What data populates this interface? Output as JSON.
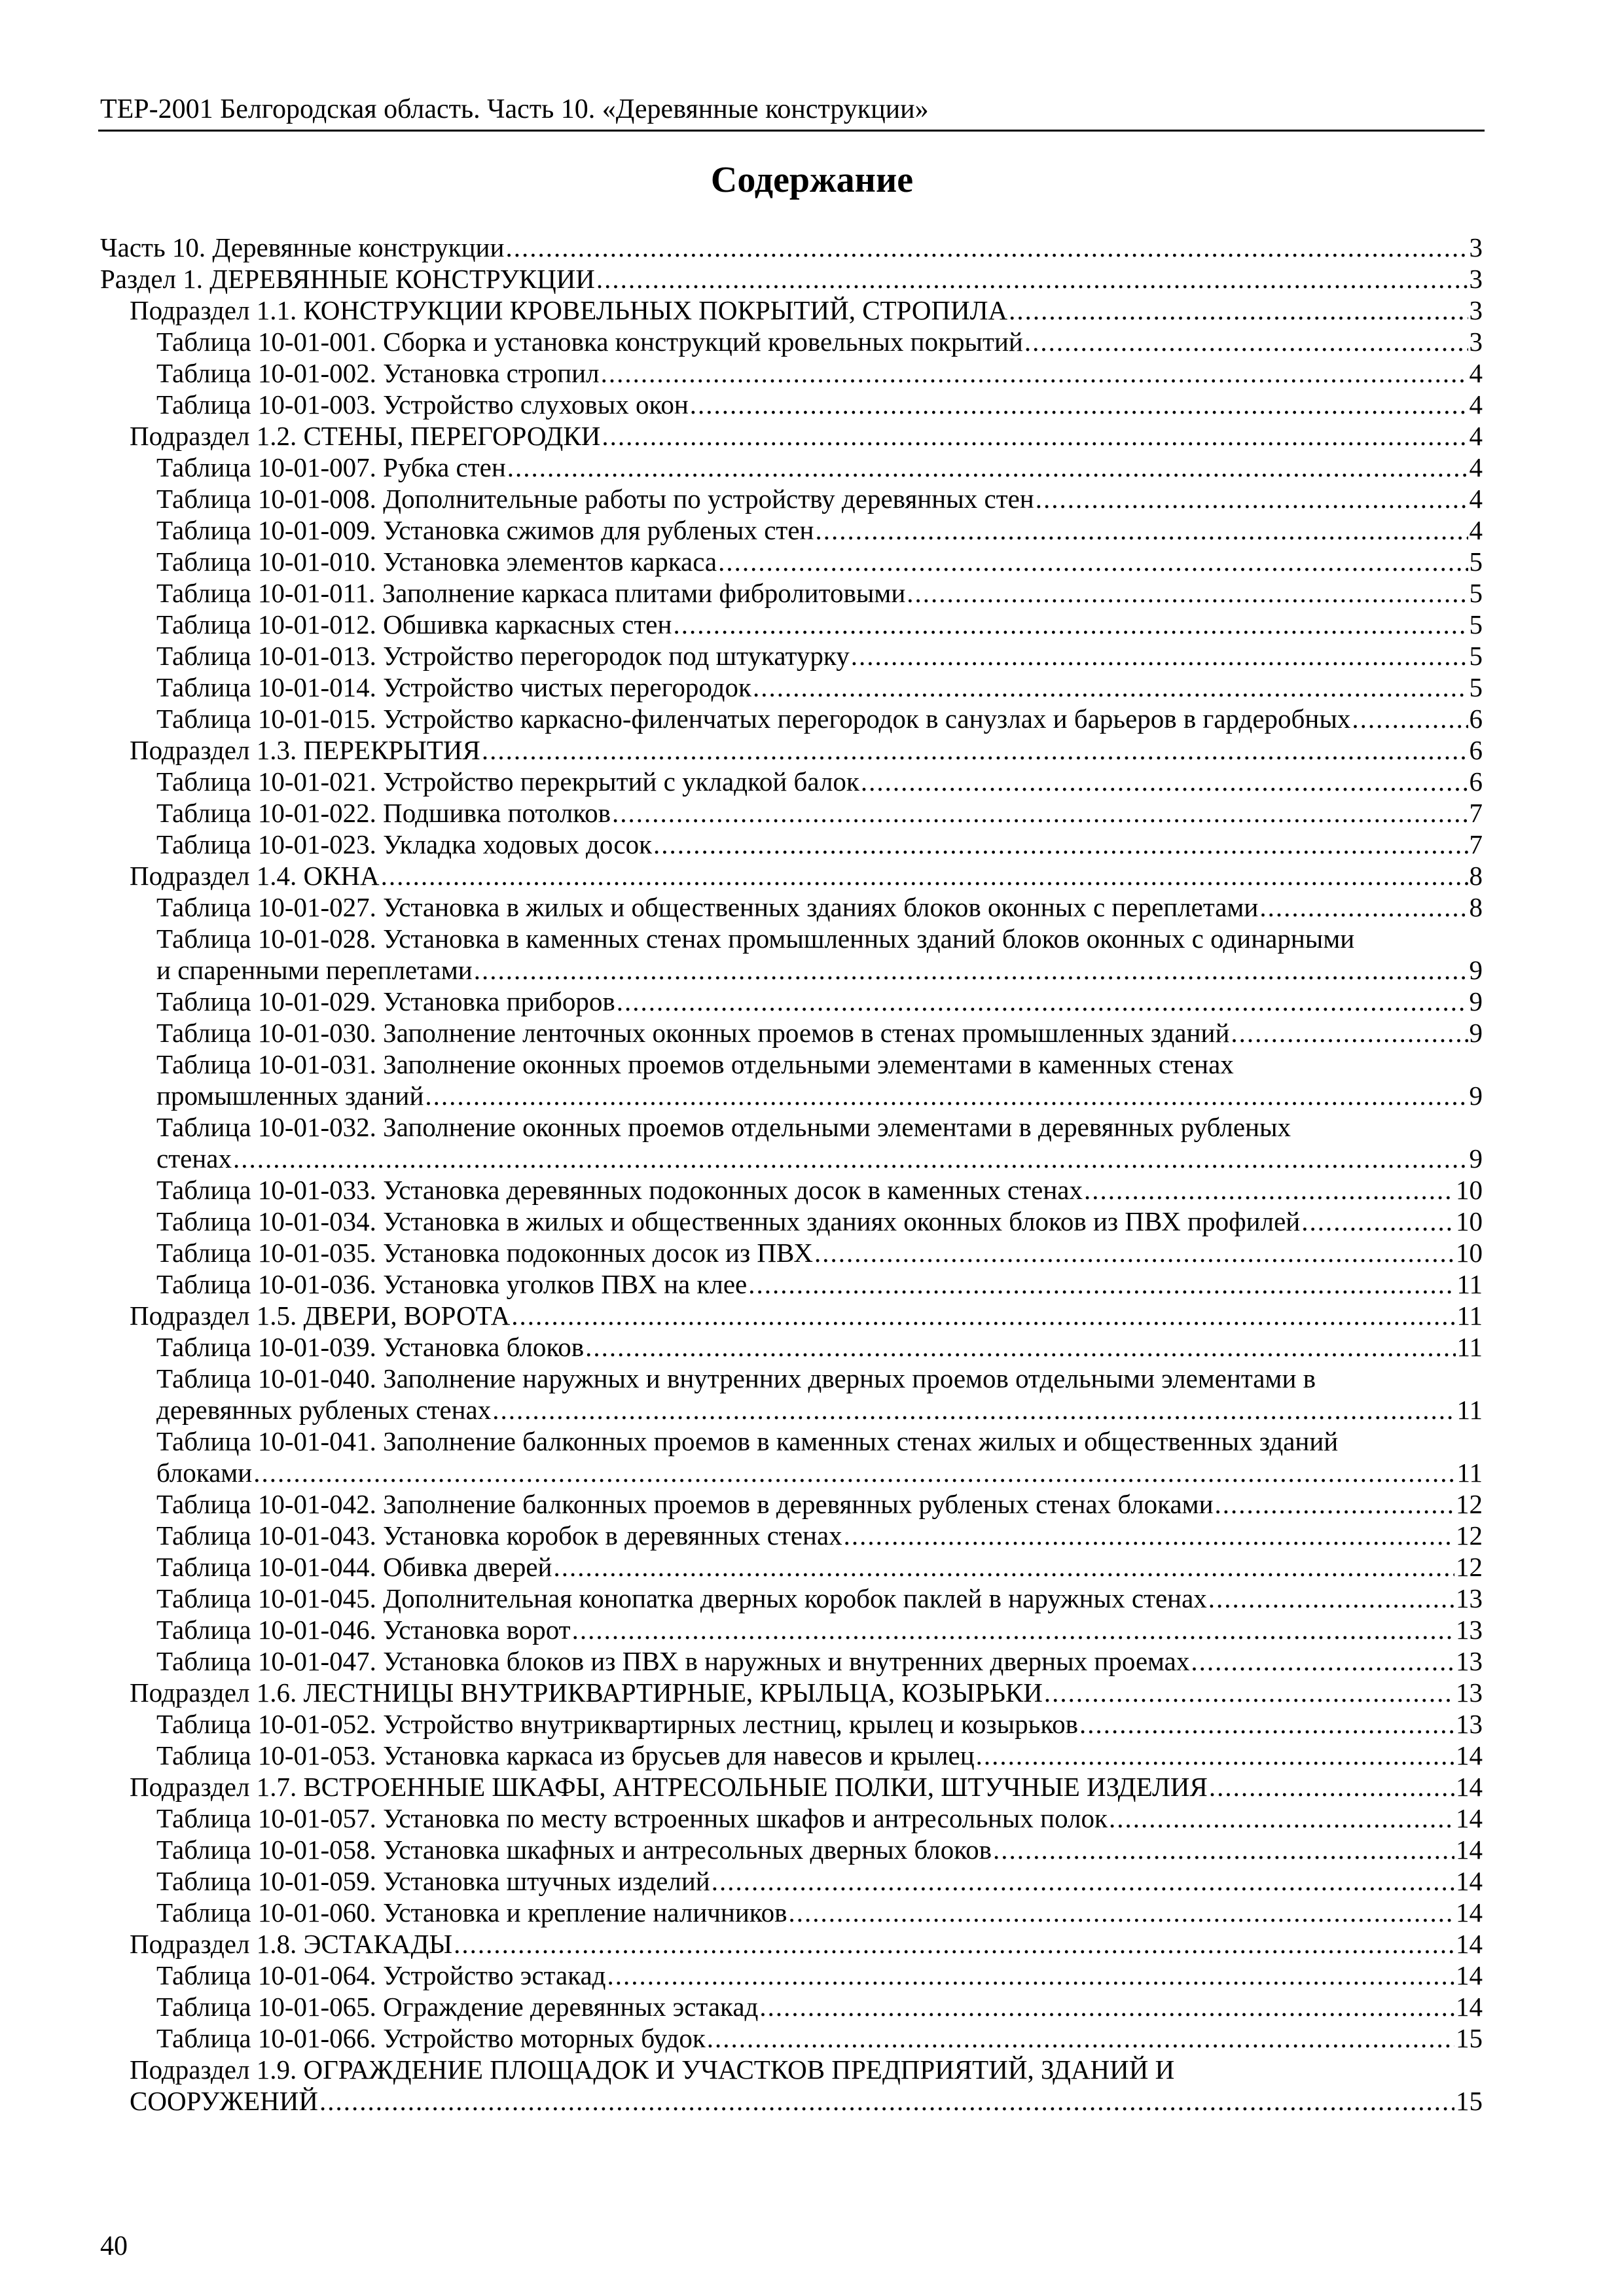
{
  "header": {
    "running_title": "ТЕР-2001 Белгородская область. Часть 10. «Деревянные конструкции»"
  },
  "title": "Содержание",
  "toc": [
    {
      "level": 0,
      "text": "Часть 10. Деревянные конструкции",
      "page": "3"
    },
    {
      "level": 0,
      "text": "Раздел 1. ДЕРЕВЯННЫЕ КОНСТРУКЦИИ",
      "page": "3"
    },
    {
      "level": 1,
      "text": "Подраздел 1.1. КОНСТРУКЦИИ КРОВЕЛЬНЫХ ПОКРЫТИЙ, СТРОПИЛА",
      "page": "3"
    },
    {
      "level": 2,
      "text": "Таблица 10-01-001. Сборка и установка конструкций кровельных покрытий",
      "page": "3"
    },
    {
      "level": 2,
      "text": "Таблица 10-01-002. Установка стропил",
      "page": "4"
    },
    {
      "level": 2,
      "text": "Таблица 10-01-003. Устройство слуховых окон",
      "page": "4"
    },
    {
      "level": 1,
      "text": "Подраздел 1.2. СТЕНЫ, ПЕРЕГОРОДКИ",
      "page": "4"
    },
    {
      "level": 2,
      "text": "Таблица 10-01-007. Рубка стен",
      "page": "4"
    },
    {
      "level": 2,
      "text": "Таблица 10-01-008. Дополнительные работы по устройству деревянных стен",
      "page": "4"
    },
    {
      "level": 2,
      "text": "Таблица 10-01-009. Установка сжимов для рубленых стен",
      "page": "4"
    },
    {
      "level": 2,
      "text": "Таблица 10-01-010. Установка элементов каркаса",
      "page": "5"
    },
    {
      "level": 2,
      "text": "Таблица 10-01-011. Заполнение каркаса плитами фибролитовыми",
      "page": "5"
    },
    {
      "level": 2,
      "text": "Таблица 10-01-012. Обшивка каркасных стен",
      "page": "5"
    },
    {
      "level": 2,
      "text": "Таблица 10-01-013. Устройство перегородок под штукатурку",
      "page": "5"
    },
    {
      "level": 2,
      "text": "Таблица 10-01-014. Устройство чистых перегородок",
      "page": "5"
    },
    {
      "level": 2,
      "text": "Таблица 10-01-015. Устройство каркасно-филенчатых перегородок в санузлах и барьеров в гардеробных",
      "page": "6"
    },
    {
      "level": 1,
      "text": "Подраздел 1.3. ПЕРЕКРЫТИЯ",
      "page": "6"
    },
    {
      "level": 2,
      "text": "Таблица 10-01-021. Устройство перекрытий с укладкой балок",
      "page": "6"
    },
    {
      "level": 2,
      "text": "Таблица 10-01-022. Подшивка потолков",
      "page": "7"
    },
    {
      "level": 2,
      "text": "Таблица 10-01-023. Укладка ходовых досок",
      "page": "7"
    },
    {
      "level": 1,
      "text": "Подраздел 1.4. ОКНА",
      "page": "8"
    },
    {
      "level": 2,
      "text": "Таблица 10-01-027. Установка в жилых и общественных зданиях блоков оконных с переплетами",
      "page": "8"
    },
    {
      "level": 2,
      "text": "Таблица 10-01-028. Установка в каменных стенах промышленных зданий блоков оконных с одинарными",
      "cont": "и спаренными переплетами",
      "page": "9"
    },
    {
      "level": 2,
      "text": "Таблица 10-01-029. Установка приборов",
      "page": "9"
    },
    {
      "level": 2,
      "text": "Таблица 10-01-030. Заполнение ленточных оконных проемов в стенах промышленных зданий",
      "page": "9"
    },
    {
      "level": 2,
      "text": "Таблица 10-01-031. Заполнение оконных проемов отдельными элементами в каменных стенах",
      "cont": "промышленных зданий",
      "page": "9"
    },
    {
      "level": 2,
      "text": "Таблица 10-01-032. Заполнение оконных проемов отдельными элементами в деревянных рубленых",
      "cont": "стенах",
      "page": "9"
    },
    {
      "level": 2,
      "text": "Таблица 10-01-033. Установка деревянных подоконных досок в каменных стенах",
      "page": "10"
    },
    {
      "level": 2,
      "text": "Таблица 10-01-034. Установка в жилых и общественных зданиях оконных блоков из ПВХ профилей",
      "page": "10"
    },
    {
      "level": 2,
      "text": "Таблица 10-01-035. Установка подоконных досок из ПВХ",
      "page": "10"
    },
    {
      "level": 2,
      "text": "Таблица 10-01-036. Установка уголков ПВХ на клее",
      "page": "11"
    },
    {
      "level": 1,
      "text": "Подраздел 1.5. ДВЕРИ, ВОРОТА",
      "page": "11"
    },
    {
      "level": 2,
      "text": "Таблица 10-01-039. Установка блоков",
      "page": "11"
    },
    {
      "level": 2,
      "text": "Таблица 10-01-040. Заполнение наружных и внутренних дверных проемов отдельными элементами в",
      "cont": "деревянных рубленых стенах",
      "page": "11"
    },
    {
      "level": 2,
      "text": "Таблица 10-01-041. Заполнение балконных проемов в каменных стенах жилых и общественных зданий",
      "cont": "блоками",
      "page": "11"
    },
    {
      "level": 2,
      "text": "Таблица 10-01-042. Заполнение балконных проемов в деревянных рубленых стенах блоками",
      "page": "12"
    },
    {
      "level": 2,
      "text": "Таблица 10-01-043. Установка коробок в деревянных стенах",
      "page": "12"
    },
    {
      "level": 2,
      "text": "Таблица 10-01-044. Обивка дверей",
      "page": "12"
    },
    {
      "level": 2,
      "text": "Таблица 10-01-045. Дополнительная конопатка дверных коробок паклей в наружных стенах",
      "page": "13"
    },
    {
      "level": 2,
      "text": "Таблица 10-01-046. Установка ворот",
      "page": "13"
    },
    {
      "level": 2,
      "text": "Таблица 10-01-047. Установка блоков из ПВХ в наружных и внутренних дверных проемах",
      "page": "13"
    },
    {
      "level": 1,
      "text": "Подраздел 1.6. ЛЕСТНИЦЫ ВНУТРИКВАРТИРНЫЕ, КРЫЛЬЦА, КОЗЫРЬКИ",
      "page": "13"
    },
    {
      "level": 2,
      "text": "Таблица 10-01-052. Устройство внутриквартирных лестниц, крылец и козырьков",
      "page": "13"
    },
    {
      "level": 2,
      "text": "Таблица 10-01-053. Установка каркаса из брусьев для навесов и крылец",
      "page": "14"
    },
    {
      "level": 1,
      "text": "Подраздел 1.7. ВСТРОЕННЫЕ ШКАФЫ, АНТРЕСОЛЬНЫЕ ПОЛКИ, ШТУЧНЫЕ ИЗДЕЛИЯ",
      "page": "14"
    },
    {
      "level": 2,
      "text": "Таблица 10-01-057. Установка по месту встроенных шкафов и антресольных полок",
      "page": "14"
    },
    {
      "level": 2,
      "text": "Таблица 10-01-058. Установка шкафных и антресольных дверных блоков",
      "page": "14"
    },
    {
      "level": 2,
      "text": "Таблица 10-01-059. Установка штучных изделий",
      "page": "14"
    },
    {
      "level": 2,
      "text": "Таблица 10-01-060. Установка и крепление наличников",
      "page": "14"
    },
    {
      "level": 1,
      "text": "Подраздел 1.8. ЭСТАКАДЫ",
      "page": "14"
    },
    {
      "level": 2,
      "text": "Таблица 10-01-064. Устройство эстакад",
      "page": "14"
    },
    {
      "level": 2,
      "text": "Таблица 10-01-065. Ограждение деревянных эстакад",
      "page": "14"
    },
    {
      "level": 2,
      "text": "Таблица 10-01-066. Устройство моторных будок",
      "page": "15"
    },
    {
      "level": 1,
      "text": "Подраздел 1.9. ОГРАЖДЕНИЕ ПЛОЩАДОК И УЧАСТКОВ ПРЕДПРИЯТИЙ, ЗДАНИЙ И",
      "cont": "СООРУЖЕНИЙ",
      "page": "15"
    }
  ],
  "footer": {
    "page_number": "40"
  }
}
